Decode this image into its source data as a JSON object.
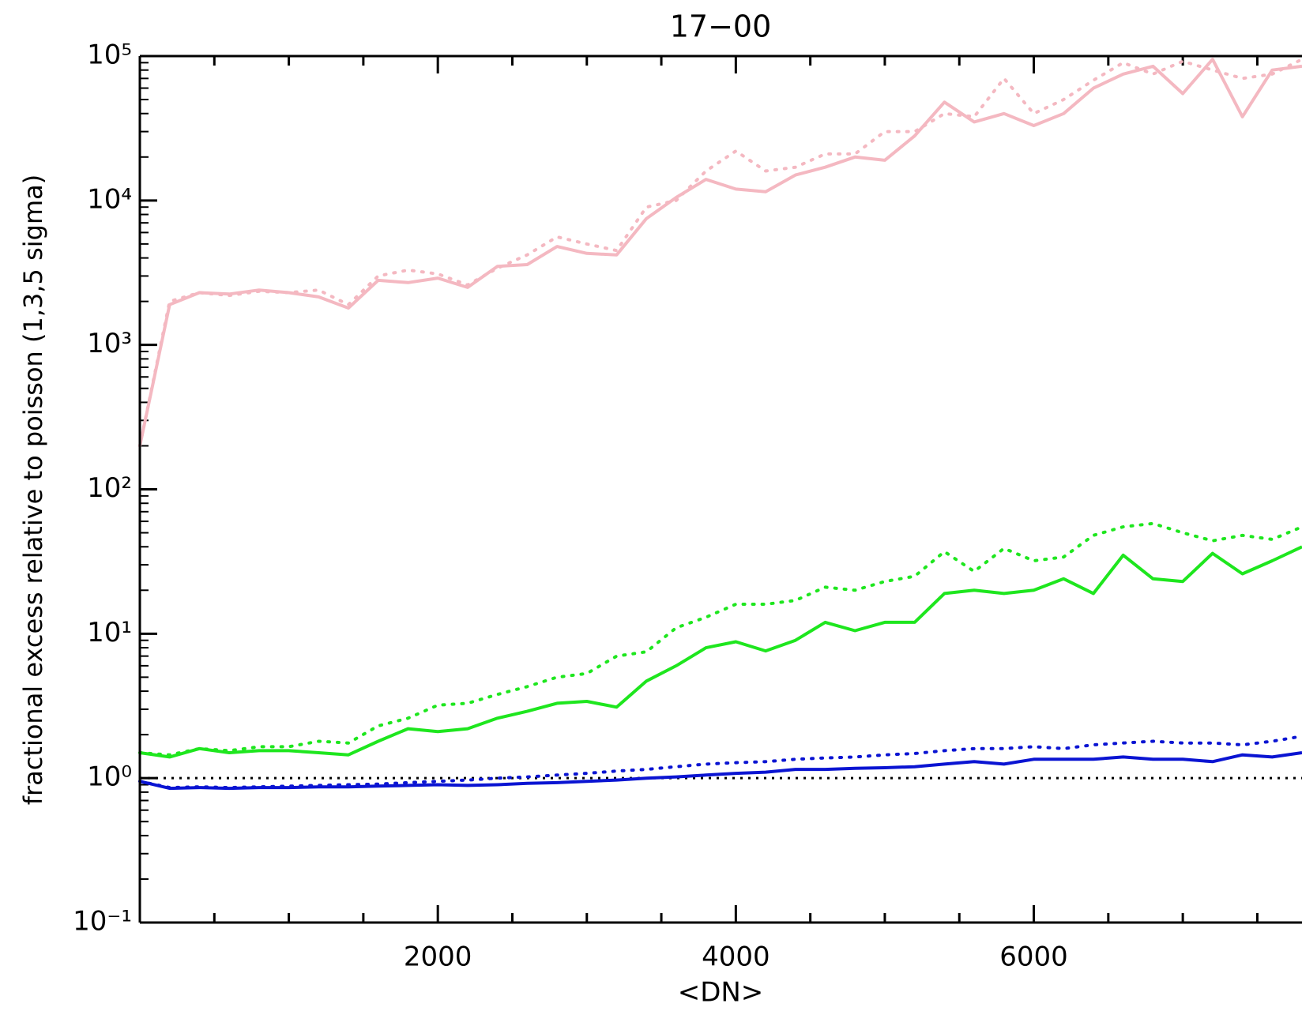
{
  "chart_data": {
    "type": "line",
    "title": "17−00",
    "x_label": "<DN>",
    "y_label": "fractional excess relative to poisson (1,3,5 sigma)",
    "x": [
      0,
      200,
      400,
      600,
      800,
      1000,
      1200,
      1400,
      1600,
      1800,
      2000,
      2200,
      2400,
      2600,
      2800,
      3000,
      3200,
      3400,
      3600,
      3800,
      4000,
      4200,
      4400,
      4600,
      4800,
      5000,
      5200,
      5400,
      5600,
      5800,
      6000,
      6200,
      6400,
      6600,
      6800,
      7000,
      7200,
      7400,
      7600,
      7800
    ],
    "series": [
      {
        "color": "#f4b8c1",
        "style": "solid",
        "values": [
          200,
          1900,
          2300,
          2250,
          2400,
          2300,
          2150,
          1800,
          2800,
          2700,
          2900,
          2500,
          3500,
          3600,
          4800,
          4300,
          4200,
          7500,
          10500,
          14000,
          12000,
          11500,
          15000,
          17000,
          20000,
          19000,
          28000,
          48000,
          35000,
          40000,
          33000,
          40000,
          60000,
          75000,
          85000,
          55000,
          95000,
          38000,
          80000,
          85000
        ]
      },
      {
        "color": "#f4b8c1",
        "style": "dotted",
        "values": [
          200,
          2000,
          2300,
          2200,
          2350,
          2300,
          2400,
          1900,
          3000,
          3300,
          3100,
          2600,
          3400,
          4200,
          5600,
          5000,
          4500,
          9000,
          10000,
          16000,
          22000,
          16000,
          17000,
          21000,
          21000,
          30000,
          30000,
          40000,
          38000,
          70000,
          40000,
          50000,
          68000,
          90000,
          75000,
          92000,
          80000,
          70000,
          75000,
          95000
        ]
      },
      {
        "color": "#1ee61e",
        "style": "solid",
        "values": [
          1.5,
          1.4,
          1.6,
          1.5,
          1.55,
          1.55,
          1.5,
          1.45,
          1.8,
          2.2,
          2.1,
          2.2,
          2.6,
          2.9,
          3.3,
          3.4,
          3.1,
          4.7,
          6,
          8,
          8.8,
          7.6,
          9,
          12,
          10.5,
          12,
          12,
          19,
          20,
          19,
          20,
          24,
          19,
          35,
          24,
          23,
          36,
          26,
          32,
          40
        ]
      },
      {
        "color": "#1ee61e",
        "style": "dotted",
        "values": [
          1.5,
          1.45,
          1.6,
          1.55,
          1.65,
          1.65,
          1.8,
          1.75,
          2.3,
          2.6,
          3.2,
          3.3,
          3.8,
          4.3,
          5,
          5.3,
          7,
          7.5,
          11,
          13,
          16,
          16,
          17,
          21,
          20,
          23,
          25,
          37,
          27,
          39,
          32,
          34,
          48,
          55,
          58,
          50,
          44,
          48,
          45,
          55
        ]
      },
      {
        "color": "#0a14d2",
        "style": "solid",
        "values": [
          0.95,
          0.85,
          0.86,
          0.85,
          0.86,
          0.86,
          0.87,
          0.87,
          0.88,
          0.89,
          0.9,
          0.89,
          0.9,
          0.92,
          0.93,
          0.95,
          0.97,
          1.0,
          1.02,
          1.05,
          1.08,
          1.1,
          1.15,
          1.15,
          1.17,
          1.18,
          1.2,
          1.25,
          1.3,
          1.25,
          1.35,
          1.35,
          1.35,
          1.4,
          1.35,
          1.35,
          1.3,
          1.45,
          1.4,
          1.5
        ]
      },
      {
        "color": "#0a14d2",
        "style": "dotted",
        "values": [
          0.95,
          0.86,
          0.87,
          0.86,
          0.87,
          0.88,
          0.89,
          0.9,
          0.91,
          0.93,
          0.95,
          0.97,
          1.0,
          1.02,
          1.05,
          1.08,
          1.12,
          1.15,
          1.2,
          1.25,
          1.28,
          1.3,
          1.35,
          1.38,
          1.4,
          1.45,
          1.48,
          1.55,
          1.6,
          1.6,
          1.65,
          1.6,
          1.7,
          1.75,
          1.8,
          1.75,
          1.75,
          1.7,
          1.8,
          1.95
        ]
      }
    ],
    "reference_line": {
      "value": 1,
      "color": "#000000",
      "style": "dotted"
    },
    "xlim": [
      0,
      7800
    ],
    "xticks": [
      2000,
      4000,
      6000
    ],
    "xminorticks": [
      500,
      1000,
      1500,
      2500,
      3000,
      3500,
      4500,
      5000,
      5500,
      6500,
      7000,
      7500
    ],
    "ylim": [
      0.1,
      100000
    ],
    "y_log": true,
    "yticks": [
      {
        "value": 0.1,
        "label": "10⁻¹"
      },
      {
        "value": 1,
        "label": "10⁰"
      },
      {
        "value": 10,
        "label": "10¹"
      },
      {
        "value": 100,
        "label": "10²"
      },
      {
        "value": 1000,
        "label": "10³"
      },
      {
        "value": 10000,
        "label": "10⁴"
      },
      {
        "value": 100000,
        "label": "10⁵"
      }
    ],
    "grid": false
  }
}
